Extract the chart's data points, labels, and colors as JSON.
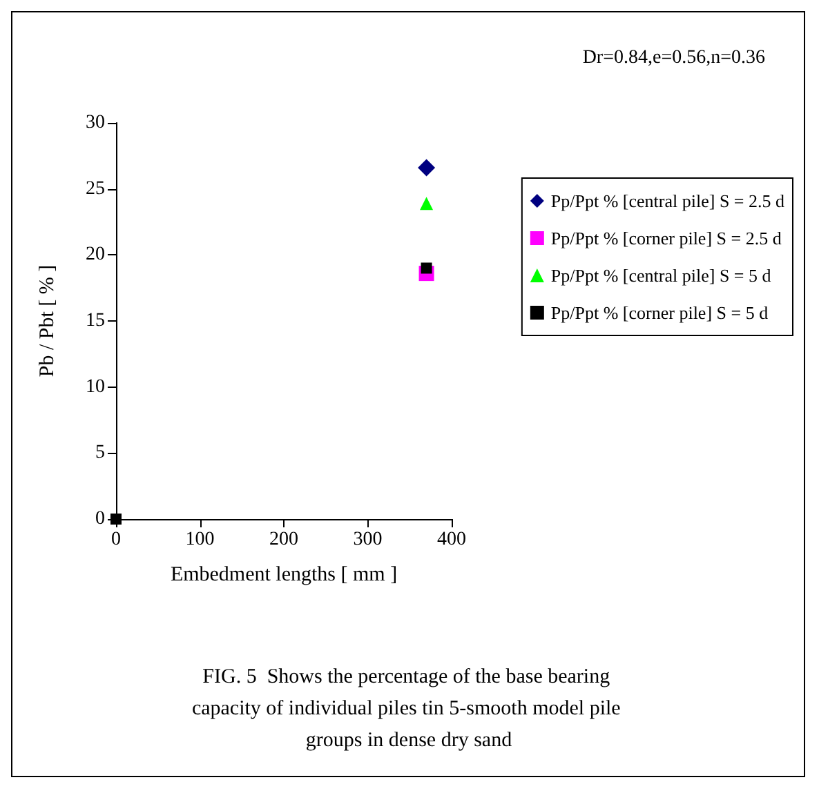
{
  "chart_data": {
    "type": "scatter",
    "title": "FIG. 5  Shows the percentage of the base bearing capacity of individual piles tin 5-smooth model pile groups in dense dry sand",
    "xlabel": "Embedment lengths [ mm ]",
    "ylabel": "Pb / Pbt [ % ]",
    "annotations": [
      "Dr=0.84,e=0.56,n=0.36"
    ],
    "x": [
      0,
      370
    ],
    "series": [
      {
        "name": "Pp/Ppt % [central pile] S = 2.5 d",
        "color": "#000080",
        "marker": "diamond",
        "values": [
          null,
          26.6
        ]
      },
      {
        "name": "Pp/Ppt % [corner pile] S = 2.5 d",
        "color": "#ff00ff",
        "marker": "square",
        "values": [
          null,
          18.6
        ]
      },
      {
        "name": "Pp/Ppt % [central pile] S = 5 d",
        "color": "#00ff00",
        "marker": "triangle",
        "values": [
          null,
          23.9
        ]
      },
      {
        "name": "Pp/Ppt % [corner pile] S = 5 d",
        "color": "#000000",
        "marker": "square",
        "values": [
          0,
          19.0
        ]
      }
    ],
    "xlim": [
      0,
      400
    ],
    "xticks": [
      0,
      100,
      200,
      300,
      400
    ],
    "ylim": [
      0,
      30
    ],
    "yticks": [
      0,
      5,
      10,
      15,
      20,
      25,
      30
    ],
    "grid": false,
    "legend": "right"
  }
}
